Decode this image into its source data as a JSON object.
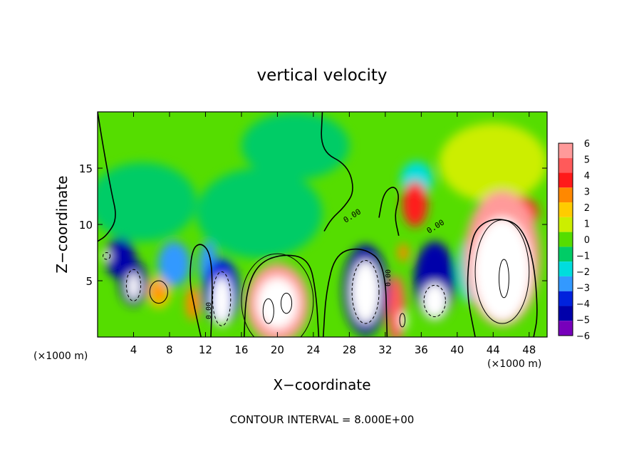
{
  "chart_data": {
    "type": "heatmap",
    "title": "vertical velocity",
    "xlabel": "X−coordinate",
    "ylabel": "Z−coordinate",
    "x_unit": "(×1000 m)",
    "y_unit": "(×1000 m)",
    "xlim": [
      0,
      50
    ],
    "ylim": [
      0,
      20
    ],
    "x_ticks": [
      4,
      8,
      12,
      16,
      20,
      24,
      28,
      32,
      36,
      40,
      44,
      48
    ],
    "y_ticks": [
      5,
      10,
      15
    ],
    "contour_interval_text": "CONTOUR INTERVAL = 8.000E+00",
    "contour_labels": [
      "0.00",
      "0.00",
      "0.00",
      "0.00"
    ],
    "colorbar": {
      "labels": [
        "6",
        "5",
        "4",
        "3",
        "2",
        "1",
        "0",
        "−1",
        "−2",
        "−3",
        "−4",
        "−5",
        "−6"
      ],
      "colors": [
        "#ff9a9a",
        "#ff5a5a",
        "#ff1a1a",
        "#ff8800",
        "#ffcc00",
        "#ccee00",
        "#55dd00",
        "#00cc66",
        "#00dddd",
        "#3399ff",
        "#0022dd",
        "#0000aa",
        "#7700bb"
      ]
    },
    "cells": [
      {
        "x": 2.5,
        "z": 7.0,
        "v": -4.5,
        "rx": 1.7,
        "rz": 1.8
      },
      {
        "x": 1.0,
        "z": 7.2,
        "v": -7.0,
        "rx": 0.5,
        "rz": 0.4
      },
      {
        "x": 4.0,
        "z": 4.8,
        "v": -4.5,
        "rx": 1.6,
        "rz": 2.0
      },
      {
        "x": 4.0,
        "z": 4.5,
        "v": -7.0,
        "rx": 0.7,
        "rz": 1.2
      },
      {
        "x": 6.8,
        "z": 4.0,
        "v": 2.0,
        "rx": 1.3,
        "rz": 1.4
      },
      {
        "x": 6.8,
        "z": 4.0,
        "v": 3.0,
        "rx": 0.7,
        "rz": 0.9
      },
      {
        "x": 8.5,
        "z": 6.5,
        "v": -2.5,
        "rx": 1.8,
        "rz": 2.0
      },
      {
        "x": 10.6,
        "z": 3.0,
        "v": 3.5,
        "rx": 0.8,
        "rz": 1.5
      },
      {
        "x": 13.8,
        "z": 4.0,
        "v": -4.0,
        "rx": 2.0,
        "rz": 3.0
      },
      {
        "x": 13.8,
        "z": 3.2,
        "v": -7.0,
        "rx": 1.1,
        "rz": 2.2
      },
      {
        "x": 12.3,
        "z": 6.5,
        "v": -3.0,
        "rx": 1.0,
        "rz": 2.0
      },
      {
        "x": 20.0,
        "z": 3.0,
        "v": 6.0,
        "rx": 3.5,
        "rz": 3.5
      },
      {
        "x": 20.0,
        "z": 3.0,
        "v": 8.0,
        "rx": 2.3,
        "rz": 2.3
      },
      {
        "x": 29.8,
        "z": 4.2,
        "v": -5.0,
        "rx": 2.5,
        "rz": 4.0
      },
      {
        "x": 29.8,
        "z": 4.0,
        "v": -7.5,
        "rx": 1.6,
        "rz": 2.8
      },
      {
        "x": 33.2,
        "z": 2.5,
        "v": 5.0,
        "rx": 1.0,
        "rz": 3.0
      },
      {
        "x": 34.0,
        "z": 1.5,
        "v": 7.0,
        "rx": 0.4,
        "rz": 0.8
      },
      {
        "x": 34.0,
        "z": 7.5,
        "v": 3.0,
        "rx": 0.6,
        "rz": 0.8
      },
      {
        "x": 37.5,
        "z": 5.0,
        "v": -5.0,
        "rx": 2.3,
        "rz": 3.5
      },
      {
        "x": 37.5,
        "z": 3.2,
        "v": -7.5,
        "rx": 1.4,
        "rz": 1.6
      },
      {
        "x": 35.3,
        "z": 11.8,
        "v": 4.5,
        "rx": 1.4,
        "rz": 2.0
      },
      {
        "x": 35.5,
        "z": 14.0,
        "v": -2.0,
        "rx": 1.8,
        "rz": 1.6
      },
      {
        "x": 45.0,
        "z": 7.0,
        "v": 6.5,
        "rx": 4.2,
        "rz": 6.0
      },
      {
        "x": 45.0,
        "z": 6.0,
        "v": 8.5,
        "rx": 3.2,
        "rz": 4.6
      },
      {
        "x": 47.0,
        "z": 11.0,
        "v": 4.0,
        "rx": 2.0,
        "rz": 1.5
      },
      {
        "x": 41.5,
        "z": 6.0,
        "v": -2.0,
        "rx": 1.5,
        "rz": 3.0
      },
      {
        "x": 5.0,
        "z": 12.0,
        "v": -0.8,
        "rx": 6.0,
        "rz": 3.5
      },
      {
        "x": 18.0,
        "z": 11.0,
        "v": -1.2,
        "rx": 7.0,
        "rz": 4.0
      },
      {
        "x": 22.0,
        "z": 17.0,
        "v": -0.6,
        "rx": 6.0,
        "rz": 3.0
      },
      {
        "x": 44.0,
        "z": 15.5,
        "v": 0.6,
        "rx": 6.0,
        "rz": 3.5
      }
    ],
    "contours": [
      {
        "style": "solid",
        "cx": 20.0,
        "cz": 3.2,
        "rx": 4.0,
        "rz": 4.2
      },
      {
        "style": "solid",
        "cx": 19.0,
        "cz": 2.3,
        "rx": 0.6,
        "rz": 1.1
      },
      {
        "style": "solid",
        "cx": 21.0,
        "cz": 3.0,
        "rx": 0.6,
        "rz": 0.9
      },
      {
        "style": "solid",
        "cx": 45.0,
        "cz": 5.8,
        "rx": 3.0,
        "rz": 4.6
      },
      {
        "style": "solid",
        "cx": 45.2,
        "cz": 5.2,
        "rx": 0.55,
        "rz": 1.7
      },
      {
        "style": "solid",
        "cx": 6.8,
        "cz": 4.0,
        "rx": 1.0,
        "rz": 1.0
      },
      {
        "style": "solid",
        "cx": 33.9,
        "cz": 1.5,
        "rx": 0.3,
        "rz": 0.6
      },
      {
        "style": "dashed",
        "cx": 29.8,
        "cz": 4.0,
        "rx": 1.5,
        "rz": 2.8
      },
      {
        "style": "dashed",
        "cx": 4.0,
        "cz": 4.6,
        "rx": 0.8,
        "rz": 1.4
      },
      {
        "style": "dashed",
        "cx": 13.8,
        "cz": 3.4,
        "rx": 1.0,
        "rz": 2.4
      },
      {
        "style": "dashed",
        "cx": 37.5,
        "cz": 3.2,
        "rx": 1.2,
        "rz": 1.4
      },
      {
        "style": "dashed",
        "cx": 1.0,
        "cz": 7.2,
        "rx": 0.4,
        "rz": 0.3
      }
    ],
    "zero_lines": [
      [
        [
          25.1,
          0
        ],
        [
          25.4,
          4.0
        ],
        [
          26.5,
          7.5
        ],
        [
          29.5,
          8.0
        ],
        [
          32.0,
          6.5
        ],
        [
          32.2,
          0
        ]
      ],
      [
        [
          16.3,
          0
        ],
        [
          16.5,
          4.0
        ],
        [
          17.8,
          6.5
        ],
        [
          20.5,
          7.4
        ],
        [
          23.5,
          7.0
        ],
        [
          24.3,
          4.0
        ],
        [
          24.6,
          0
        ]
      ],
      [
        [
          42.0,
          0
        ],
        [
          41.0,
          4.0
        ],
        [
          41.5,
          8.5
        ],
        [
          42.5,
          10.0
        ],
        [
          44.5,
          10.6
        ],
        [
          47.0,
          10.0
        ],
        [
          48.5,
          7.0
        ],
        [
          49.0,
          2.0
        ],
        [
          48.5,
          0
        ]
      ],
      [
        [
          0.0,
          20
        ],
        [
          0.6,
          17.0
        ],
        [
          1.5,
          13.0
        ],
        [
          2.2,
          10.5
        ],
        [
          1.0,
          9.0
        ],
        [
          0.0,
          8.5
        ]
      ],
      [
        [
          25.0,
          20
        ],
        [
          24.8,
          16.5
        ],
        [
          27.8,
          15.3
        ],
        [
          28.6,
          13.0
        ],
        [
          27.5,
          11.6
        ],
        [
          26.0,
          10.5
        ],
        [
          25.2,
          9.4
        ]
      ],
      [
        [
          31.3,
          10.6
        ],
        [
          31.8,
          12.8
        ],
        [
          33.0,
          13.5
        ],
        [
          33.6,
          12.5
        ],
        [
          33.0,
          10.8
        ],
        [
          33.5,
          9.0
        ]
      ],
      [
        [
          11.5,
          0
        ],
        [
          10.8,
          2.5
        ],
        [
          10.2,
          5.0
        ],
        [
          10.5,
          7.8
        ],
        [
          11.5,
          8.4
        ],
        [
          12.5,
          7.5
        ],
        [
          12.8,
          5.0
        ],
        [
          12.6,
          0
        ]
      ]
    ]
  }
}
